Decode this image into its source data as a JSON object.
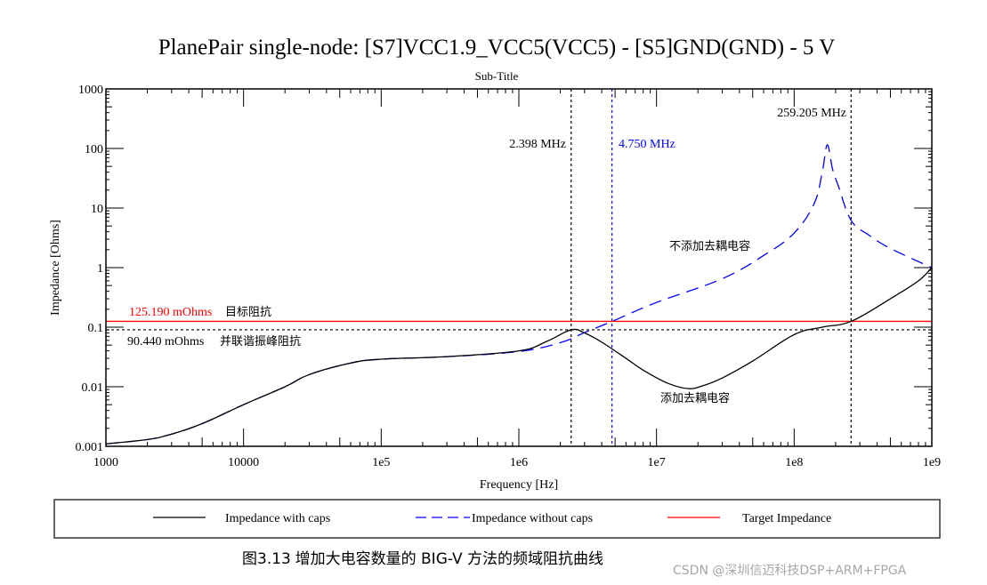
{
  "chart_data": {
    "type": "line",
    "title": "PlanePair single-node: [S7]VCC1.9_VCC5(VCC5) - [S5]GND(GND) - 5 V",
    "subtitle": "Sub-Title",
    "xlabel": "Frequency [Hz]",
    "ylabel": "Impedance [Ohms]",
    "xscale": "log",
    "yscale": "log",
    "xlim": [
      1000,
      1000000000
    ],
    "ylim": [
      0.001,
      1000
    ],
    "x_ticks": [
      {
        "value": 1000,
        "label": "1000"
      },
      {
        "value": 10000,
        "label": "10000"
      },
      {
        "value": 100000,
        "label": "1e5"
      },
      {
        "value": 1000000,
        "label": "1e6"
      },
      {
        "value": 10000000,
        "label": "1e7"
      },
      {
        "value": 100000000,
        "label": "1e8"
      },
      {
        "value": 1000000000,
        "label": "1e9"
      }
    ],
    "y_ticks": [
      {
        "value": 1000,
        "label": "1000"
      },
      {
        "value": 100,
        "label": "100"
      },
      {
        "value": 10,
        "label": "10"
      },
      {
        "value": 1,
        "label": "1"
      },
      {
        "value": 0.1,
        "label": "0.1"
      },
      {
        "value": 0.01,
        "label": "0.01"
      },
      {
        "value": 0.001,
        "label": "0.001"
      }
    ],
    "series": [
      {
        "name": "Impedance with caps",
        "color": "#000000",
        "style": "solid",
        "points": [
          [
            1000,
            0.0011
          ],
          [
            2000,
            0.0013
          ],
          [
            3000,
            0.0016
          ],
          [
            5000,
            0.0024
          ],
          [
            10000,
            0.005
          ],
          [
            20000,
            0.01
          ],
          [
            30000,
            0.016
          ],
          [
            60000,
            0.025
          ],
          [
            100000,
            0.029
          ],
          [
            300000,
            0.032
          ],
          [
            1000000,
            0.04
          ],
          [
            1600000,
            0.058
          ],
          [
            2398000,
            0.0904
          ],
          [
            3000000,
            0.08
          ],
          [
            4000000,
            0.056
          ],
          [
            6000000,
            0.03
          ],
          [
            8000000,
            0.019
          ],
          [
            12000000,
            0.0115
          ],
          [
            17000000,
            0.0093
          ],
          [
            22000000,
            0.0105
          ],
          [
            30000000,
            0.014
          ],
          [
            50000000,
            0.027
          ],
          [
            100000000,
            0.075
          ],
          [
            160000000,
            0.1
          ],
          [
            259205000,
            0.1252
          ],
          [
            500000000,
            0.3
          ],
          [
            800000000,
            0.6
          ],
          [
            1000000000,
            1.0
          ]
        ]
      },
      {
        "name": "Impedance without caps",
        "color": "#0000ff",
        "style": "dashed",
        "points": [
          [
            1000,
            0.0011
          ],
          [
            2000,
            0.0013
          ],
          [
            3000,
            0.0016
          ],
          [
            5000,
            0.0024
          ],
          [
            10000,
            0.005
          ],
          [
            20000,
            0.01
          ],
          [
            30000,
            0.016
          ],
          [
            60000,
            0.025
          ],
          [
            100000,
            0.029
          ],
          [
            300000,
            0.032
          ],
          [
            1000000,
            0.039
          ],
          [
            2000000,
            0.055
          ],
          [
            3000000,
            0.081
          ],
          [
            4750000,
            0.125
          ],
          [
            10000000,
            0.26
          ],
          [
            30000000,
            0.65
          ],
          [
            60000000,
            1.6
          ],
          [
            100000000,
            3.8
          ],
          [
            140000000,
            12.0
          ],
          [
            160000000,
            40.0
          ],
          [
            174000000,
            115.0
          ],
          [
            190000000,
            45.0
          ],
          [
            210000000,
            23.0
          ],
          [
            259205000,
            6.2
          ],
          [
            350000000,
            3.5
          ],
          [
            500000000,
            2.1
          ],
          [
            1000000000,
            1.0
          ]
        ]
      },
      {
        "name": "Target Impedance",
        "color": "#ff0000",
        "style": "solid",
        "points": [
          [
            1000,
            0.12519
          ],
          [
            1000000000,
            0.12519
          ]
        ]
      }
    ],
    "reference_lines": {
      "horizontal": [
        {
          "value": 0.09044,
          "label": "90.440 mOhms",
          "note": "并联谐振峰阻抗",
          "color": "#000000",
          "style": "dotted"
        }
      ],
      "vertical": [
        {
          "value": 2398000,
          "label": "2.398 MHz",
          "color": "#000000",
          "style": "dotted"
        },
        {
          "value": 4750000,
          "label": "4.750 MHz",
          "color": "#0000ff",
          "style": "dotted"
        },
        {
          "value": 259205000,
          "label": "259.205 MHz",
          "color": "#000000",
          "style": "dotted"
        }
      ]
    },
    "annotations": {
      "target_label": "125.190 mOhms",
      "target_note": "目标阻抗",
      "without_caps_note": "不添加去耦电容",
      "with_caps_note": "添加去耦电容"
    },
    "legend": {
      "position": "bottom",
      "entries": [
        "Impedance with caps",
        "Impedance without caps",
        "Target Impedance"
      ]
    },
    "grid": false
  },
  "caption": {
    "prefix": "图3.13",
    "text": "增加大电容数量的 BIG-V 方法的频域阻抗曲线"
  },
  "watermark": "CSDN @深圳信迈科技DSP+ARM+FPGA"
}
